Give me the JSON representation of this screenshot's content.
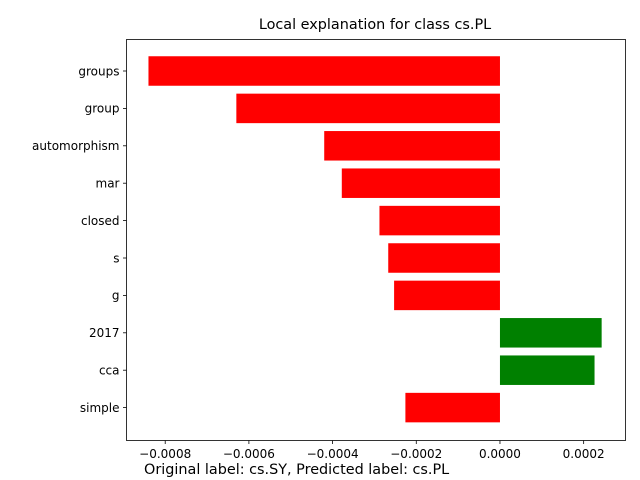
{
  "chart_data": {
    "type": "bar",
    "orientation": "horizontal",
    "title": "Local explanation for class cs.PL",
    "xlabel": "",
    "ylabel": "",
    "caption": "Original label: cs.SY, Predicted label: cs.PL",
    "categories": [
      "groups",
      "group",
      "automorphism",
      "mar",
      "closed",
      "s",
      "g",
      "2017",
      "cca",
      "simple"
    ],
    "values": [
      -0.00084,
      -0.00063,
      -0.00042,
      -0.000378,
      -0.000288,
      -0.000267,
      -0.000253,
      0.000243,
      0.000226,
      -0.000226
    ],
    "xlim": [
      -0.0008925,
      0.0003
    ],
    "xticks": [
      {
        "value": -0.0008,
        "label": "−0.0008"
      },
      {
        "value": -0.0006,
        "label": "−0.0006"
      },
      {
        "value": -0.0004,
        "label": "−0.0004"
      },
      {
        "value": -0.0002,
        "label": "−0.0002"
      },
      {
        "value": 0.0,
        "label": "0.0000"
      },
      {
        "value": 0.0002,
        "label": "0.0002"
      }
    ],
    "colors": {
      "positive": "#008000",
      "negative": "#ff0000"
    },
    "grid": false,
    "legend": "none"
  }
}
